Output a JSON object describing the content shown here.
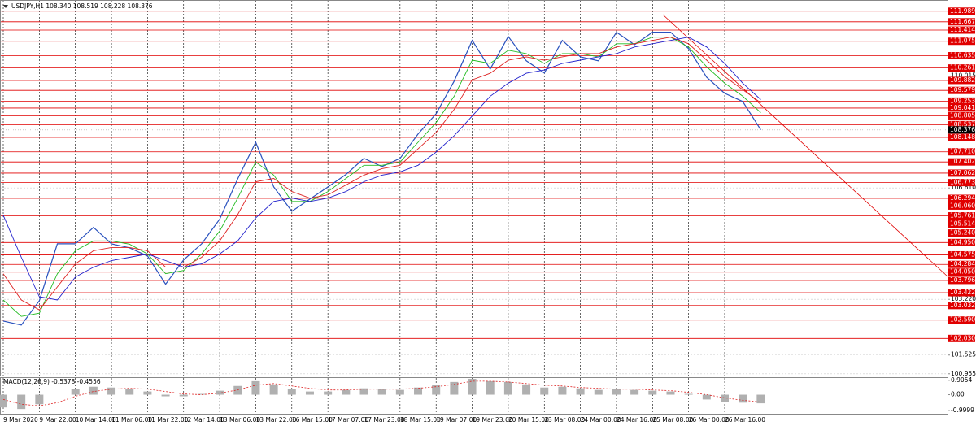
{
  "chart_data": {
    "type": "line",
    "title": "USDJPY,H1  108.340 108.519 108.228 108.376",
    "x": [
      "9 Mar 2020",
      null,
      "9 Mar 22:00",
      null,
      "10 Mar 14:00",
      null,
      "11 Mar 06:00",
      null,
      "11 Mar 22:00",
      null,
      "12 Mar 14:00",
      null,
      "13 Mar 06:00",
      null,
      "13 Mar 22:00",
      null,
      "16 Mar 15:00",
      null,
      "17 Mar 07:00",
      null,
      "17 Mar 23:00",
      null,
      "18 Mar 15:00",
      null,
      "19 Mar 07:00",
      null,
      "19 Mar 23:00",
      null,
      "20 Mar 15:00",
      null,
      "23 Mar 08:00",
      null,
      "24 Mar 00:00",
      null,
      "24 Mar 16:00",
      null,
      "25 Mar 08:00",
      null,
      "26 Mar 00:00",
      null,
      "26 Mar 16:00",
      null,
      null
    ],
    "series": [
      {
        "color": "#2a52be",
        "values": [
          102.56,
          102.44,
          103.18,
          104.91,
          104.91,
          105.41,
          104.91,
          104.79,
          104.54,
          103.68,
          104.42,
          104.91,
          105.66,
          106.89,
          108.0,
          106.64,
          105.9,
          106.27,
          106.64,
          107.02,
          107.51,
          107.26,
          107.51,
          108.25,
          108.87,
          109.86,
          111.1,
          110.23,
          111.22,
          110.48,
          110.11,
          111.1,
          110.6,
          110.48,
          111.35,
          110.97,
          111.35,
          111.35,
          110.85,
          109.98,
          109.49,
          109.24,
          108.38
        ]
      },
      {
        "color": "#22bb22",
        "values": [
          103.2,
          102.7,
          102.8,
          104.0,
          104.7,
          105.0,
          105.0,
          104.9,
          104.6,
          104.0,
          104.1,
          104.6,
          105.3,
          106.3,
          107.4,
          107.0,
          106.2,
          106.2,
          106.5,
          106.9,
          107.3,
          107.3,
          107.4,
          108.0,
          108.6,
          109.4,
          110.5,
          110.4,
          110.8,
          110.7,
          110.4,
          110.7,
          110.7,
          110.6,
          111.0,
          111.0,
          111.2,
          111.2,
          110.9,
          110.3,
          109.8,
          109.4,
          108.9
        ]
      },
      {
        "color": "#dd2222",
        "values": [
          104.0,
          103.2,
          102.9,
          103.6,
          104.3,
          104.7,
          104.8,
          104.8,
          104.7,
          104.2,
          104.2,
          104.5,
          105.0,
          105.8,
          106.8,
          106.9,
          106.5,
          106.3,
          106.4,
          106.7,
          107.0,
          107.2,
          107.3,
          107.8,
          108.3,
          109.0,
          109.9,
          110.1,
          110.5,
          110.6,
          110.5,
          110.6,
          110.7,
          110.7,
          110.9,
          111.0,
          111.1,
          111.2,
          111.0,
          110.5,
          110.0,
          109.6,
          109.2
        ]
      },
      {
        "color": "#2222cc",
        "values": [
          105.78,
          104.5,
          103.3,
          103.2,
          103.9,
          104.2,
          104.4,
          104.5,
          104.6,
          104.4,
          104.2,
          104.3,
          104.6,
          105.0,
          105.7,
          106.2,
          106.3,
          106.2,
          106.3,
          106.5,
          106.8,
          107.0,
          107.1,
          107.3,
          107.7,
          108.2,
          108.8,
          109.4,
          109.8,
          110.1,
          110.2,
          110.4,
          110.5,
          110.6,
          110.7,
          110.9,
          111.0,
          111.1,
          111.2,
          110.9,
          110.4,
          109.8,
          109.3
        ]
      }
    ],
    "ylim": [
      100.9,
      112.33
    ],
    "yticks": [
      110.015,
      {
        "value": 106.61,
        "label": "106.610"
      },
      {
        "value": 103.22,
        "label": "103.220"
      },
      101.525,
      100.955
    ],
    "levels_color": "#e00000",
    "levels": [
      111.989,
      111.667,
      111.414,
      111.075,
      110.635,
      110.261,
      109.882,
      109.579,
      109.253,
      109.041,
      108.805,
      108.537,
      108.148,
      {
        "value": 107.71,
        "label": "107.710"
      },
      107.402,
      107.062,
      106.773,
      106.294,
      {
        "value": 106.06,
        "label": "106.060"
      },
      105.761,
      105.514,
      {
        "value": 105.24,
        "label": "105.240"
      },
      {
        "value": 104.95,
        "label": "104.950"
      },
      104.575,
      104.284,
      {
        "value": 104.05,
        "label": "104.050"
      },
      103.796,
      103.422,
      103.032,
      {
        "value": 102.59,
        "label": "102.590"
      },
      {
        "value": 102.03,
        "label": "102.030"
      }
    ],
    "current_price": 108.376,
    "macd": {
      "label": "MACD(12,26,9) -0.5378 -0.4556",
      "ylim": [
        -1.25,
        1.1
      ],
      "yticks": [
        0.9054,
        {
          "value": 0,
          "label": "0.00"
        },
        -0.9999
      ],
      "color": "#b0b0b0",
      "values": [
        -0.8,
        -0.9,
        -0.6,
        0.0,
        0.35,
        0.5,
        0.45,
        0.35,
        0.2,
        -0.1,
        -0.1,
        0.05,
        0.25,
        0.55,
        0.85,
        0.65,
        0.35,
        0.2,
        0.2,
        0.3,
        0.4,
        0.35,
        0.3,
        0.45,
        0.6,
        0.8,
        1.0,
        0.85,
        0.8,
        0.65,
        0.45,
        0.5,
        0.4,
        0.3,
        0.35,
        0.3,
        0.25,
        0.2,
        0.05,
        -0.3,
        -0.45,
        -0.5,
        -0.54
      ],
      "signal": {
        "color": "#dd2222",
        "values": [
          -0.3,
          -0.6,
          -0.7,
          -0.5,
          -0.1,
          0.2,
          0.35,
          0.4,
          0.35,
          0.2,
          0.05,
          0.0,
          0.1,
          0.3,
          0.6,
          0.7,
          0.55,
          0.4,
          0.3,
          0.3,
          0.35,
          0.35,
          0.35,
          0.4,
          0.5,
          0.65,
          0.85,
          0.85,
          0.8,
          0.7,
          0.6,
          0.55,
          0.45,
          0.4,
          0.35,
          0.35,
          0.3,
          0.25,
          0.15,
          0.0,
          -0.2,
          -0.35,
          -0.46
        ]
      }
    }
  }
}
